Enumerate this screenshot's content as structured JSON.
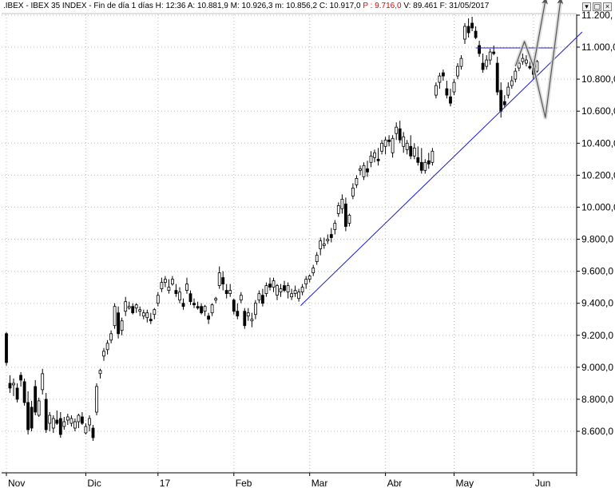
{
  "header": {
    "symbol": ".IBEX",
    "name": "IBEX 35 INDEX",
    "period": "Fin de día 1 días",
    "time": "H: 12:36",
    "high": "A: 10.881,9",
    "max": "M: 10.926,3",
    "min": "m: 10.856,2",
    "close": "C: 10.917,0",
    "p": "P : 9.716,0",
    "volume": "V: 89.461",
    "date": "F: 31/05/2017",
    "p_color": "#e00000"
  },
  "window_buttons": [
    "▾",
    "▢",
    "×"
  ],
  "chart_data": {
    "type": "candlestick",
    "title": "",
    "xlabel": "",
    "ylabel": "",
    "ylim": [
      8500,
      11300
    ],
    "grid": true,
    "x_tick_labels": [
      "Nov",
      "Dic",
      "17",
      "Feb",
      "Mar",
      "Abr",
      "May",
      "Jun"
    ],
    "x_tick_sessions": [
      0,
      22,
      42,
      63,
      84,
      105,
      124,
      146
    ],
    "y_ticks": [
      8600,
      8800,
      9000,
      9200,
      9400,
      9600,
      9800,
      10000,
      10200,
      10400,
      10600,
      10800,
      11000,
      11200
    ],
    "y_tick_labels": [
      "8.600,0",
      "8.800,0",
      "9.000,0",
      "9.200,0",
      "9.400,0",
      "9.600,0",
      "9.800,0",
      "10.000,0",
      "10.200,0",
      "10.400,0",
      "10.600,0",
      "10.800,0",
      "11.000,0",
      "11.200,"
    ],
    "candles": [
      [
        9210,
        9220,
        9010,
        9030
      ],
      [
        8900,
        8950,
        8840,
        8870
      ],
      [
        8890,
        8930,
        8820,
        8900
      ],
      [
        8870,
        8900,
        8780,
        8800
      ],
      [
        8950,
        8970,
        8880,
        8920
      ],
      [
        8910,
        8930,
        8760,
        8780
      ],
      [
        8780,
        8850,
        8580,
        8610
      ],
      [
        8750,
        8790,
        8600,
        8620
      ],
      [
        8880,
        8920,
        8700,
        8720
      ],
      [
        8700,
        8810,
        8690,
        8790
      ],
      [
        8860,
        8990,
        8830,
        8960
      ],
      [
        8800,
        8840,
        8590,
        8610
      ],
      [
        8650,
        8720,
        8600,
        8700
      ],
      [
        8620,
        8700,
        8590,
        8680
      ],
      [
        8670,
        8730,
        8640,
        8650
      ],
      [
        8680,
        8720,
        8560,
        8580
      ],
      [
        8630,
        8690,
        8610,
        8660
      ],
      [
        8670,
        8710,
        8640,
        8690
      ],
      [
        8650,
        8700,
        8630,
        8680
      ],
      [
        8620,
        8680,
        8600,
        8660
      ],
      [
        8660,
        8710,
        8620,
        8700
      ],
      [
        8690,
        8720,
        8640,
        8650
      ],
      [
        8590,
        8650,
        8580,
        8630
      ],
      [
        8640,
        8700,
        8600,
        8680
      ],
      [
        8620,
        8640,
        8540,
        8560
      ],
      [
        8720,
        8900,
        8700,
        8880
      ],
      [
        8960,
        8990,
        8930,
        8980
      ],
      [
        9070,
        9120,
        9040,
        9100
      ],
      [
        9110,
        9170,
        9080,
        9150
      ],
      [
        9170,
        9230,
        9150,
        9210
      ],
      [
        9260,
        9400,
        9240,
        9380
      ],
      [
        9340,
        9380,
        9180,
        9210
      ],
      [
        9230,
        9310,
        9200,
        9290
      ],
      [
        9350,
        9440,
        9320,
        9410
      ],
      [
        9370,
        9410,
        9360,
        9380
      ],
      [
        9380,
        9400,
        9330,
        9340
      ],
      [
        9370,
        9400,
        9340,
        9390
      ],
      [
        9350,
        9380,
        9320,
        9360
      ],
      [
        9320,
        9360,
        9300,
        9340
      ],
      [
        9310,
        9360,
        9280,
        9340
      ],
      [
        9300,
        9340,
        9270,
        9290
      ],
      [
        9330,
        9370,
        9300,
        9360
      ],
      [
        9400,
        9470,
        9380,
        9450
      ],
      [
        9490,
        9560,
        9470,
        9530
      ],
      [
        9530,
        9570,
        9500,
        9550
      ],
      [
        9480,
        9550,
        9460,
        9500
      ],
      [
        9520,
        9570,
        9510,
        9550
      ],
      [
        9480,
        9520,
        9440,
        9460
      ],
      [
        9420,
        9500,
        9400,
        9470
      ],
      [
        9400,
        9430,
        9360,
        9380
      ],
      [
        9480,
        9560,
        9460,
        9520
      ],
      [
        9460,
        9480,
        9390,
        9410
      ],
      [
        9400,
        9430,
        9370,
        9390
      ],
      [
        9380,
        9410,
        9360,
        9370
      ],
      [
        9380,
        9400,
        9330,
        9340
      ],
      [
        9350,
        9390,
        9320,
        9380
      ],
      [
        9320,
        9340,
        9270,
        9300
      ],
      [
        9340,
        9400,
        9320,
        9390
      ],
      [
        9420,
        9440,
        9400,
        9430
      ],
      [
        9510,
        9630,
        9490,
        9590
      ],
      [
        9560,
        9600,
        9480,
        9520
      ],
      [
        9480,
        9520,
        9430,
        9460
      ],
      [
        9460,
        9520,
        9440,
        9480
      ],
      [
        9420,
        9430,
        9330,
        9350
      ],
      [
        9350,
        9400,
        9300,
        9320
      ],
      [
        9420,
        9470,
        9400,
        9450
      ],
      [
        9350,
        9370,
        9240,
        9260
      ],
      [
        9320,
        9370,
        9290,
        9340
      ],
      [
        9290,
        9340,
        9250,
        9300
      ],
      [
        9330,
        9420,
        9300,
        9400
      ],
      [
        9420,
        9480,
        9400,
        9460
      ],
      [
        9450,
        9490,
        9380,
        9400
      ],
      [
        9460,
        9530,
        9440,
        9510
      ],
      [
        9520,
        9560,
        9480,
        9500
      ],
      [
        9500,
        9560,
        9470,
        9540
      ],
      [
        9450,
        9520,
        9420,
        9510
      ],
      [
        9470,
        9520,
        9440,
        9490
      ],
      [
        9510,
        9540,
        9470,
        9480
      ],
      [
        9470,
        9530,
        9430,
        9510
      ],
      [
        9440,
        9490,
        9420,
        9460
      ],
      [
        9460,
        9510,
        9440,
        9480
      ],
      [
        9430,
        9490,
        9410,
        9470
      ],
      [
        9470,
        9520,
        9450,
        9500
      ],
      [
        9520,
        9570,
        9490,
        9550
      ],
      [
        9550,
        9580,
        9530,
        9570
      ],
      [
        9590,
        9640,
        9570,
        9620
      ],
      [
        9660,
        9720,
        9640,
        9700
      ],
      [
        9740,
        9810,
        9700,
        9790
      ],
      [
        9760,
        9810,
        9740,
        9770
      ],
      [
        9790,
        9830,
        9770,
        9800
      ],
      [
        9830,
        9870,
        9780,
        9810
      ],
      [
        9860,
        9920,
        9830,
        9900
      ],
      [
        9960,
        10030,
        9940,
        10010
      ],
      [
        9990,
        10080,
        9960,
        10050
      ],
      [
        10020,
        10060,
        9850,
        9880
      ],
      [
        9900,
        9960,
        9880,
        9950
      ],
      [
        10070,
        10150,
        10050,
        10120
      ],
      [
        10140,
        10200,
        10120,
        10180
      ],
      [
        10230,
        10260,
        10200,
        10240
      ],
      [
        10190,
        10280,
        10170,
        10260
      ],
      [
        10240,
        10290,
        10190,
        10220
      ],
      [
        10280,
        10350,
        10250,
        10320
      ],
      [
        10310,
        10360,
        10280,
        10340
      ],
      [
        10300,
        10370,
        10260,
        10290
      ],
      [
        10350,
        10420,
        10330,
        10400
      ],
      [
        10380,
        10440,
        10330,
        10420
      ],
      [
        10420,
        10450,
        10380,
        10410
      ],
      [
        10340,
        10450,
        10310,
        10430
      ],
      [
        10460,
        10530,
        10420,
        10500
      ],
      [
        10490,
        10540,
        10400,
        10420
      ],
      [
        10380,
        10470,
        10340,
        10440
      ],
      [
        10360,
        10420,
        10330,
        10400
      ],
      [
        10380,
        10450,
        10300,
        10320
      ],
      [
        10320,
        10400,
        10300,
        10370
      ],
      [
        10310,
        10380,
        10260,
        10280
      ],
      [
        10280,
        10370,
        10210,
        10230
      ],
      [
        10230,
        10300,
        10210,
        10280
      ],
      [
        10290,
        10340,
        10240,
        10270
      ],
      [
        10280,
        10370,
        10260,
        10350
      ],
      [
        10700,
        10780,
        10680,
        10760
      ],
      [
        10780,
        10840,
        10740,
        10820
      ],
      [
        10840,
        10860,
        10790,
        10820
      ],
      [
        10740,
        10790,
        10680,
        10700
      ],
      [
        10690,
        10740,
        10630,
        10650
      ],
      [
        10720,
        10800,
        10700,
        10780
      ],
      [
        10820,
        10900,
        10800,
        10880
      ],
      [
        10880,
        10950,
        10860,
        10930
      ],
      [
        11050,
        11150,
        11020,
        11130
      ],
      [
        11130,
        11180,
        11060,
        11090
      ],
      [
        11150,
        11190,
        11100,
        11120
      ],
      [
        11100,
        11130,
        11050,
        11060
      ],
      [
        11010,
        11040,
        10940,
        10960
      ],
      [
        10900,
        10960,
        10840,
        10860
      ],
      [
        10880,
        10950,
        10860,
        10920
      ],
      [
        10920,
        10990,
        10890,
        10970
      ],
      [
        10970,
        11010,
        10950,
        10960
      ],
      [
        10900,
        10940,
        10700,
        10720
      ],
      [
        10730,
        10780,
        10560,
        10600
      ],
      [
        10660,
        10700,
        10620,
        10640
      ],
      [
        10700,
        10780,
        10680,
        10750
      ],
      [
        10760,
        10820,
        10740,
        10790
      ],
      [
        10800,
        10870,
        10780,
        10850
      ],
      [
        10870,
        10920,
        10850,
        10900
      ],
      [
        10910,
        10960,
        10890,
        10930
      ],
      [
        10900,
        10950,
        10880,
        10920
      ],
      [
        10880,
        10910,
        10860,
        10870
      ],
      [
        10870,
        10890,
        10800,
        10830
      ],
      [
        10850,
        10920,
        10840,
        10910
      ]
    ],
    "trendline": {
      "from": [
        "Feb",
        9385
      ],
      "to": [
        "Jun",
        11095
      ]
    },
    "resistance": {
      "from": [
        "May",
        10995
      ],
      "to": [
        "Jun",
        10995
      ]
    },
    "projection_paths": [
      [
        [
          10880,
          141
        ],
        [
          11035,
          143.5
        ],
        [
          10880,
          146
        ],
        [
          11290,
          149.3
        ]
      ],
      [
        [
          10880,
          146
        ],
        [
          10560,
          149.3
        ],
        [
          11290,
          153.5
        ]
      ]
    ]
  }
}
